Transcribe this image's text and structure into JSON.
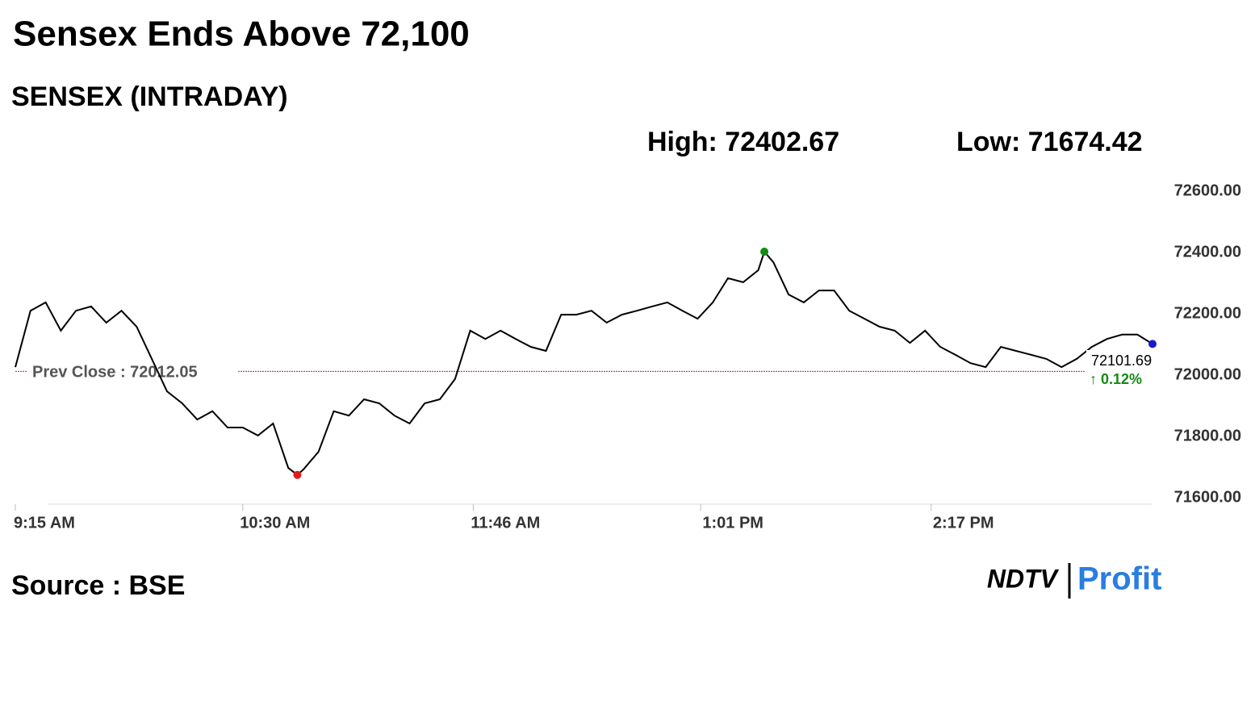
{
  "chart_data": {
    "type": "line",
    "title": "Sensex Ends Above 72,100",
    "subtitle": "SENSEX (INTRADAY)",
    "high": {
      "label": "High: 72402.67",
      "value": 72402.67
    },
    "low": {
      "label": "Low: 71674.42",
      "value": 71674.42
    },
    "prev_close": {
      "label": "Prev Close : 72012.05",
      "value": 72012.05
    },
    "last": {
      "label": "72101.69",
      "value": 72101.69
    },
    "change": {
      "label": "↑ 0.12%",
      "value": 0.12
    },
    "source": "Source : BSE",
    "logo": {
      "left": "NDTV",
      "right": "Profit"
    },
    "x": [
      "9:15 AM",
      "9:20 AM",
      "9:25 AM",
      "9:30 AM",
      "9:35 AM",
      "9:40 AM",
      "9:45 AM",
      "9:50 AM",
      "9:55 AM",
      "10:00 AM",
      "10:05 AM",
      "10:10 AM",
      "10:15 AM",
      "10:20 AM",
      "10:25 AM",
      "10:30 AM",
      "10:35 AM",
      "10:40 AM",
      "10:45 AM",
      "10:48 AM",
      "10:50 AM",
      "10:55 AM",
      "11:00 AM",
      "11:05 AM",
      "11:10 AM",
      "11:15 AM",
      "11:20 AM",
      "11:25 AM",
      "11:30 AM",
      "11:35 AM",
      "11:40 AM",
      "11:45 AM",
      "11:50 AM",
      "11:55 AM",
      "12:00 PM",
      "12:05 PM",
      "12:10 PM",
      "12:15 PM",
      "12:20 PM",
      "12:25 PM",
      "12:30 PM",
      "12:35 PM",
      "12:40 PM",
      "12:45 PM",
      "12:50 PM",
      "12:55 PM",
      "1:00 PM",
      "1:05 PM",
      "1:10 PM",
      "1:15 PM",
      "1:20 PM",
      "1:22 PM",
      "1:25 PM",
      "1:30 PM",
      "1:35 PM",
      "1:40 PM",
      "1:45 PM",
      "1:50 PM",
      "1:55 PM",
      "2:00 PM",
      "2:05 PM",
      "2:10 PM",
      "2:15 PM",
      "2:20 PM",
      "2:25 PM",
      "2:30 PM",
      "2:35 PM",
      "2:40 PM",
      "2:45 PM",
      "2:50 PM",
      "2:55 PM",
      "3:00 PM",
      "3:05 PM",
      "3:10 PM",
      "3:15 PM",
      "3:20 PM",
      "3:25 PM",
      "3:30 PM"
    ],
    "series": [
      {
        "name": "SENSEX",
        "color": "#000000",
        "values": [
          72026,
          72210,
          72237,
          72145,
          72210,
          72224,
          72171,
          72210,
          72158,
          72053,
          71947,
          71908,
          71855,
          71882,
          71829,
          71829,
          71803,
          71842,
          71697,
          71674.42,
          71692,
          71750,
          71882,
          71868,
          71921,
          71908,
          71868,
          71842,
          71908,
          71921,
          71987,
          72145,
          72118,
          72145,
          72118,
          72092,
          72079,
          72197,
          72197,
          72210,
          72171,
          72197,
          72210,
          72224,
          72237,
          72210,
          72184,
          72237,
          72316,
          72303,
          72342,
          72402.67,
          72368,
          72263,
          72237,
          72276,
          72276,
          72210,
          72184,
          72158,
          72145,
          72105,
          72145,
          72092,
          72066,
          72039,
          72026,
          72092,
          72079,
          72066,
          72053,
          72026,
          72053,
          72092,
          72118,
          72132,
          72132,
          72101.69
        ]
      }
    ],
    "xticks": [
      "9:15 AM",
      "10:30 AM",
      "11:46 AM",
      "1:01 PM",
      "2:17 PM"
    ],
    "ylim": [
      71600,
      72600
    ],
    "yticks": [
      {
        "value": 71600,
        "label": "71600.00"
      },
      {
        "value": 71800,
        "label": "71800.00"
      },
      {
        "value": 72000,
        "label": "72000.00"
      },
      {
        "value": 72200,
        "label": "72200.00"
      },
      {
        "value": 72400,
        "label": "72400.00"
      },
      {
        "value": 72600,
        "label": "72600.00"
      }
    ],
    "high_color": "#138a13",
    "low_color": "#e01b1b",
    "last_color": "#1a1acc",
    "prev_close_color": "#cc2222",
    "change_color": "#138a13"
  }
}
